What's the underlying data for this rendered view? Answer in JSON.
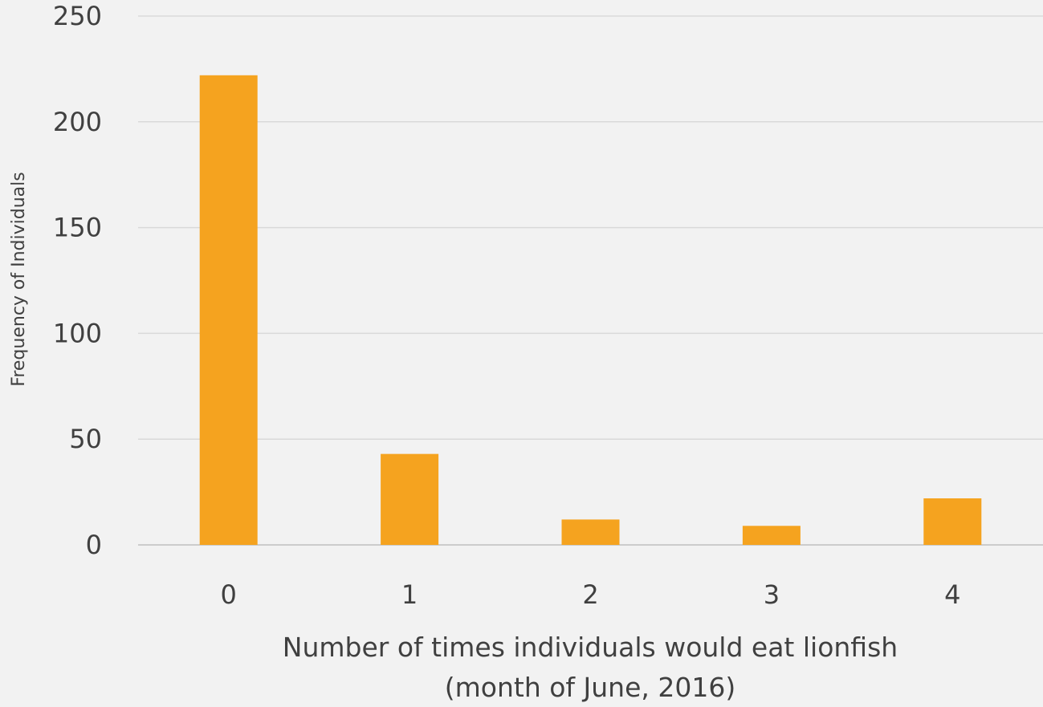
{
  "chart_data": {
    "type": "bar",
    "title": "",
    "categories": [
      "0",
      "1",
      "2",
      "3",
      "4"
    ],
    "values": [
      222,
      43,
      12,
      9,
      22
    ],
    "xlabel": [
      "Number of times individuals would eat lionfish",
      "(month of June, 2016)"
    ],
    "ylabel": "Frequency of Individuals",
    "ylim": [
      0,
      250
    ],
    "yticks": [
      0,
      50,
      100,
      150,
      200,
      250
    ],
    "grid": true,
    "legend": "none",
    "bar_color": "#f5a31f"
  }
}
